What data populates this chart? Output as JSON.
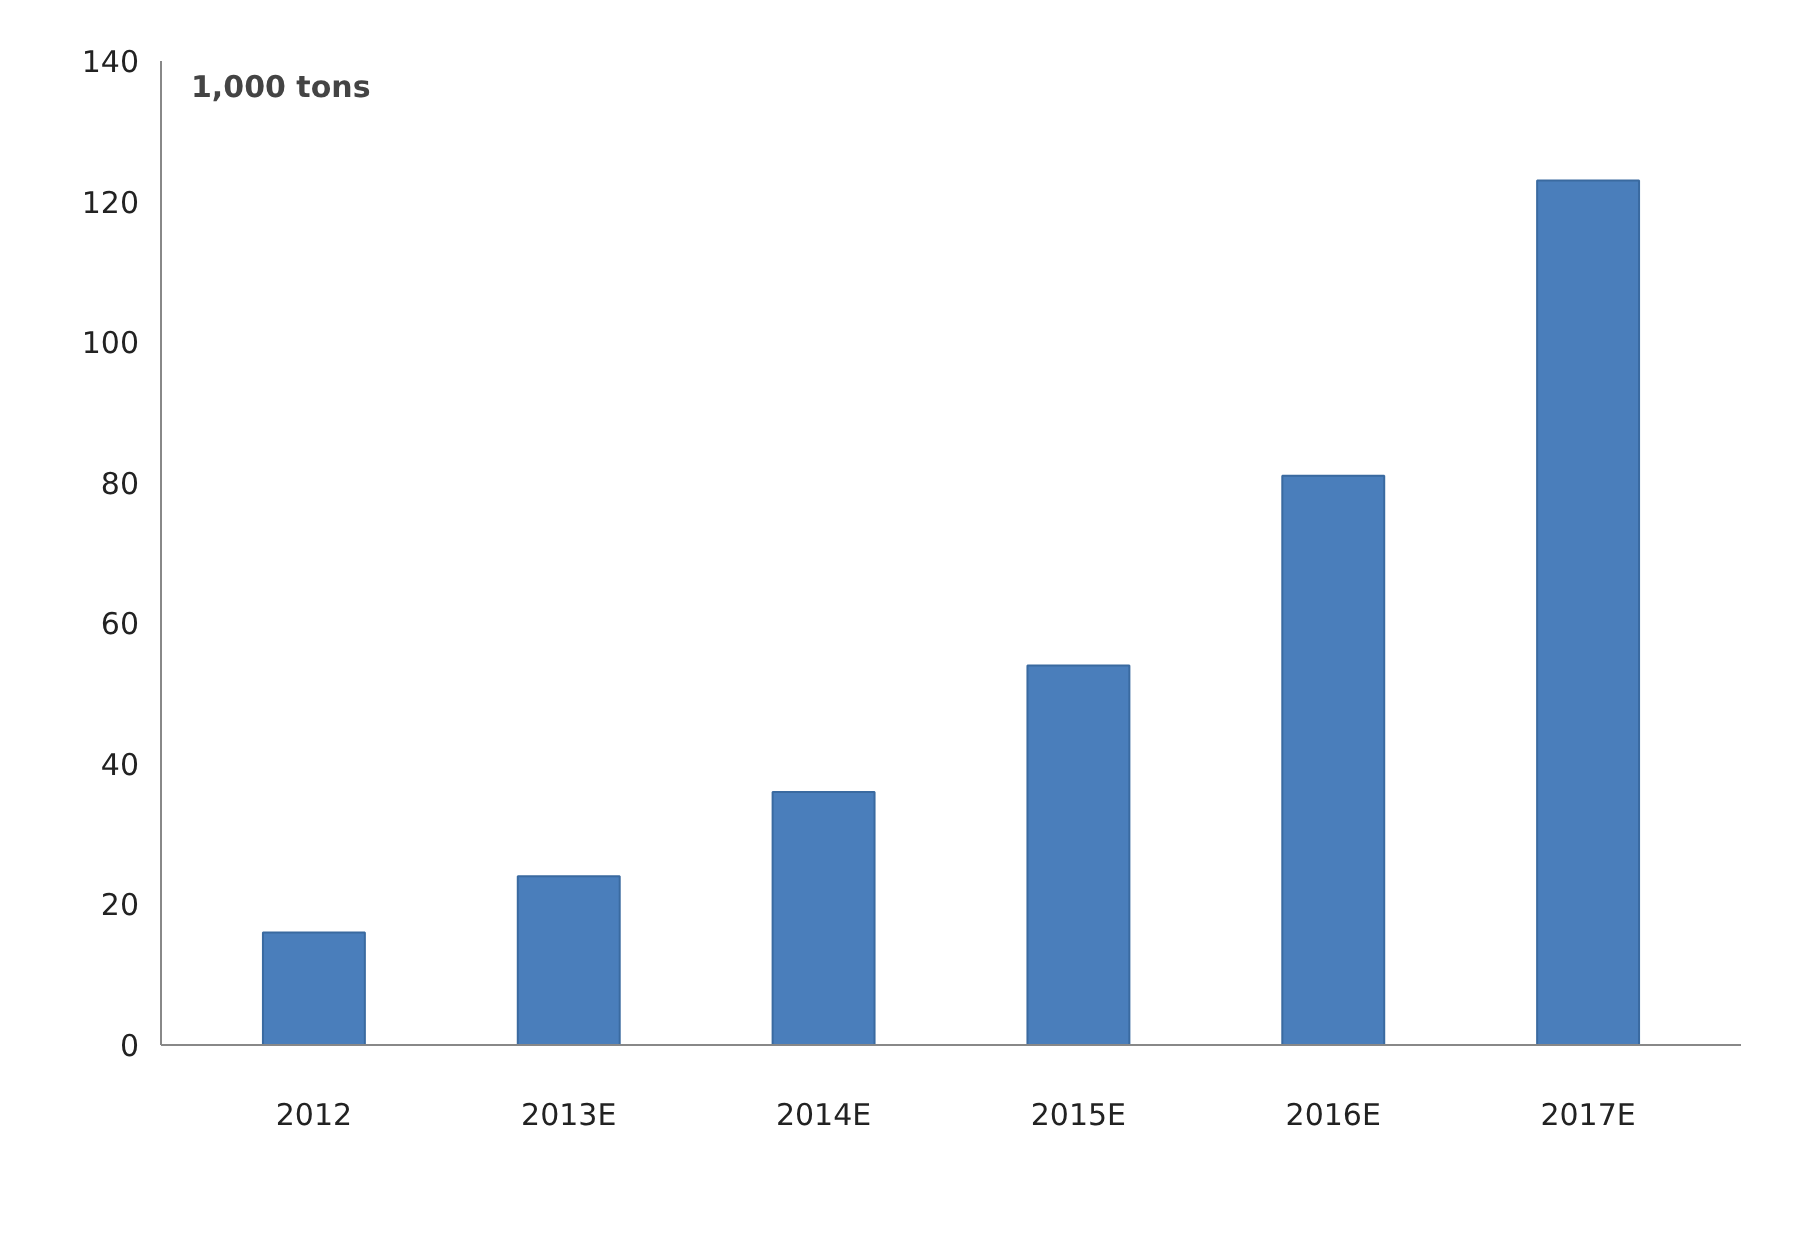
{
  "chart_data": {
    "type": "bar",
    "categories": [
      "2012",
      "2013E",
      "2014E",
      "2015E",
      "2016E",
      "2017E"
    ],
    "values": [
      16,
      24,
      36,
      54,
      81,
      123
    ],
    "color": "#4a7ebb",
    "ylim": [
      0,
      140
    ],
    "yticks": [
      0,
      20,
      40,
      60,
      80,
      100,
      120,
      140
    ],
    "grid": false,
    "annotations": [
      "1,000 tons"
    ]
  }
}
